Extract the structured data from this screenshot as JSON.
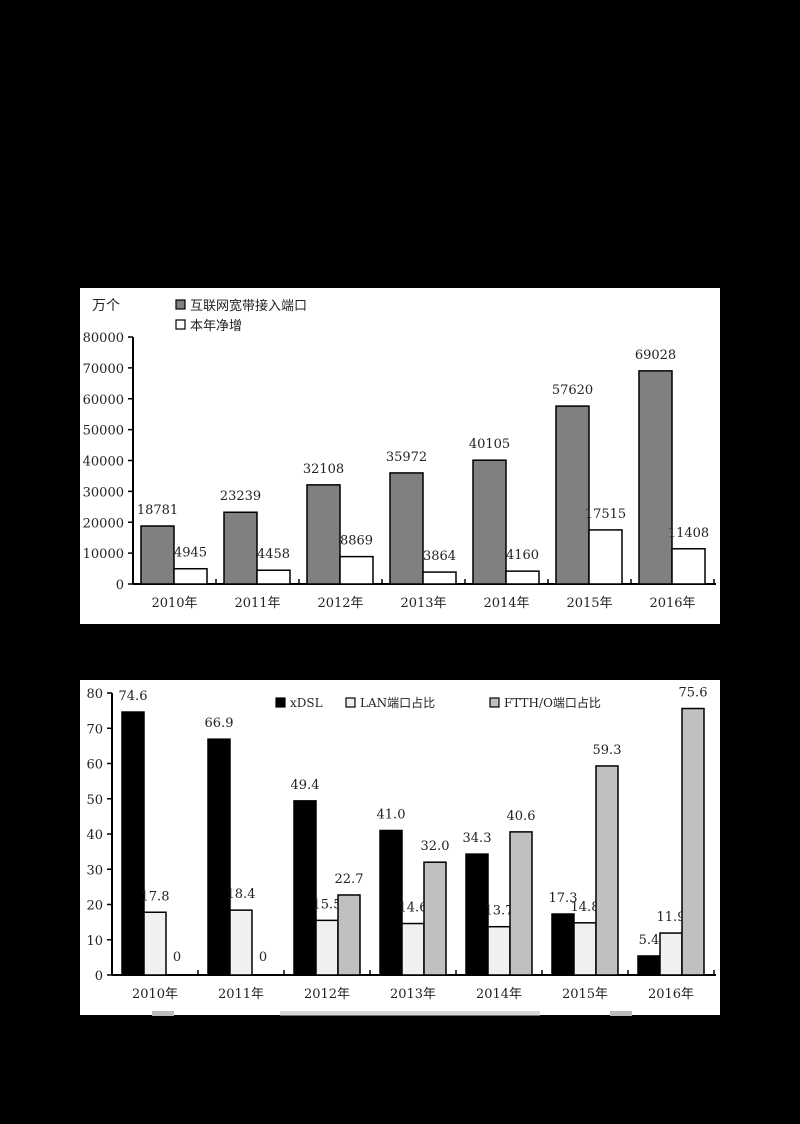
{
  "chart_data": [
    {
      "type": "bar",
      "title": "",
      "ylabel": "万个",
      "xlabel": "",
      "ylim": [
        0,
        80000
      ],
      "yticks": [
        0,
        10000,
        20000,
        30000,
        40000,
        50000,
        60000,
        70000,
        80000
      ],
      "categories": [
        "2010年",
        "2011年",
        "2012年",
        "2013年",
        "2014年",
        "2015年",
        "2016年"
      ],
      "series": [
        {
          "name": "互联网宽带接入端口",
          "color": "#808080",
          "values": [
            18781,
            23239,
            32108,
            35972,
            40105,
            57620,
            69028
          ]
        },
        {
          "name": "本年净增",
          "color": "#ffffff",
          "values": [
            4945,
            4458,
            8869,
            3864,
            4160,
            17515,
            11408
          ]
        }
      ],
      "legend_position": "top-left",
      "grid": false,
      "data_labels": true
    },
    {
      "type": "bar",
      "title": "",
      "ylabel": "",
      "xlabel": "",
      "ylim": [
        0,
        80
      ],
      "yticks": [
        0,
        10,
        20,
        30,
        40,
        50,
        60,
        70,
        80
      ],
      "categories": [
        "2010年",
        "2011年",
        "2012年",
        "2013年",
        "2014年",
        "2015年",
        "2016年"
      ],
      "series": [
        {
          "name": "xDSL",
          "color": "#000000",
          "values": [
            74.6,
            66.9,
            49.4,
            41.0,
            34.3,
            17.3,
            5.4
          ],
          "labels": [
            "74.6",
            "66.9",
            "49.4",
            "41.0",
            "34.3",
            "17.3",
            "5.4"
          ]
        },
        {
          "name": "LAN端口占比",
          "color": "#f0f0f0",
          "values": [
            17.8,
            18.4,
            15.5,
            14.6,
            13.7,
            14.8,
            11.9
          ],
          "labels": [
            "17.8",
            "18.4",
            "15.5",
            "14.6",
            "13.7",
            "14.8",
            "11.9"
          ]
        },
        {
          "name": "FTTH/O端口占比",
          "color": "#c0c0c0",
          "values": [
            0,
            0,
            22.7,
            32.0,
            40.6,
            59.3,
            75.6
          ],
          "labels": [
            "0",
            "0",
            "22.7",
            "32.0",
            "40.6",
            "59.3",
            "75.6"
          ]
        }
      ],
      "legend_position": "top",
      "grid": false,
      "data_labels": true
    }
  ]
}
